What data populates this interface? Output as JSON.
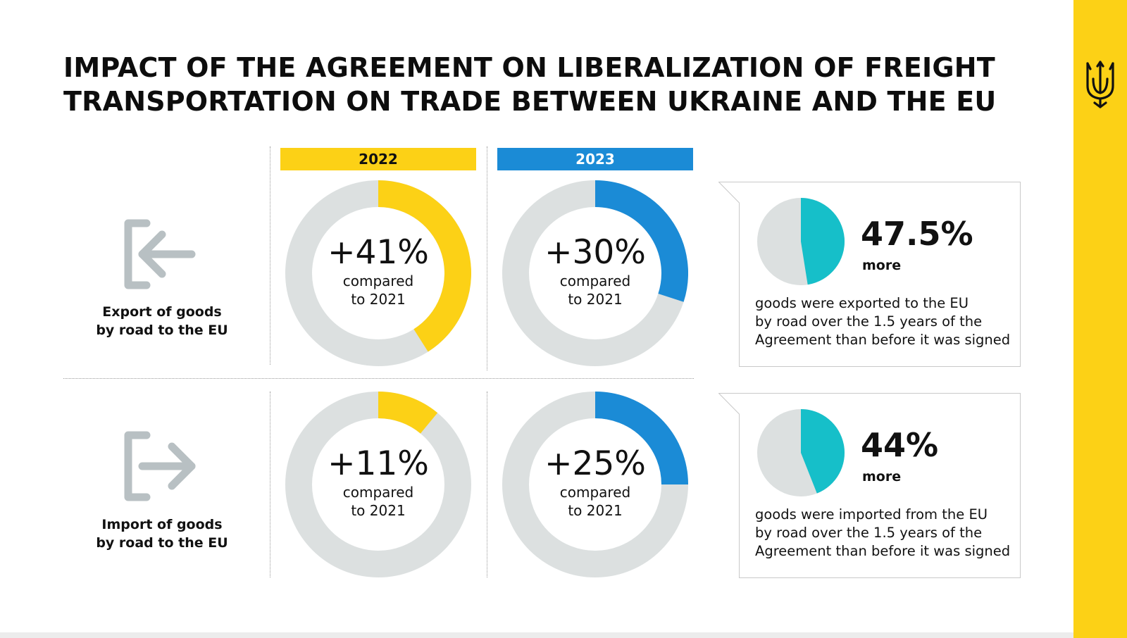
{
  "title": {
    "line1": "IMPACT OF THE AGREEMENT ON LIBERALIZATION OF FREIGHT",
    "line2": "TRANSPORTATION ON TRADE BETWEEN UKRAINE AND THE EU"
  },
  "colors": {
    "yellow": "#FCD116",
    "blue": "#1B8BD6",
    "teal": "#16BFC9",
    "track": "#DCE0E0",
    "icon_gray": "#B8C0C3"
  },
  "years": [
    "2022",
    "2023"
  ],
  "rows": [
    {
      "icon": "export-arrow-icon",
      "label_line1": "Export of goods",
      "label_line2": "by road to the EU"
    },
    {
      "icon": "import-arrow-icon",
      "label_line1": "Import of goods",
      "label_line2": "by road to the EU"
    }
  ],
  "chart_data": [
    {
      "type": "pie",
      "title": "Export of goods by road to the EU",
      "categories": [
        "2022",
        "2023"
      ],
      "series": [
        {
          "name": "growth vs 2021 (%)",
          "values": [
            41,
            30
          ]
        }
      ],
      "labels": [
        "+41%",
        "+30%"
      ],
      "sublabel_line1": "compared",
      "sublabel_line2": "to 2021"
    },
    {
      "type": "pie",
      "title": "Import of goods by road to the EU",
      "categories": [
        "2022",
        "2023"
      ],
      "series": [
        {
          "name": "growth vs 2021 (%)",
          "values": [
            11,
            25
          ]
        }
      ],
      "labels": [
        "+11%",
        "+25%"
      ],
      "sublabel_line1": "compared",
      "sublabel_line2": "to 2021"
    },
    {
      "type": "pie",
      "title": "Export increase over 1.5 years of the Agreement",
      "values": [
        47.5
      ],
      "value_label": "47.5%",
      "unit_label": "more",
      "description_lines": [
        "goods were exported to the EU",
        "by road over the 1.5 years of the",
        "Agreement than before it was signed"
      ]
    },
    {
      "type": "pie",
      "title": "Import increase over 1.5 years of the Agreement",
      "values": [
        44
      ],
      "value_label": "44%",
      "unit_label": "more",
      "description_lines": [
        "goods were imported from the EU",
        "by road over the 1.5 years of the",
        "Agreement than before it was signed"
      ]
    }
  ]
}
